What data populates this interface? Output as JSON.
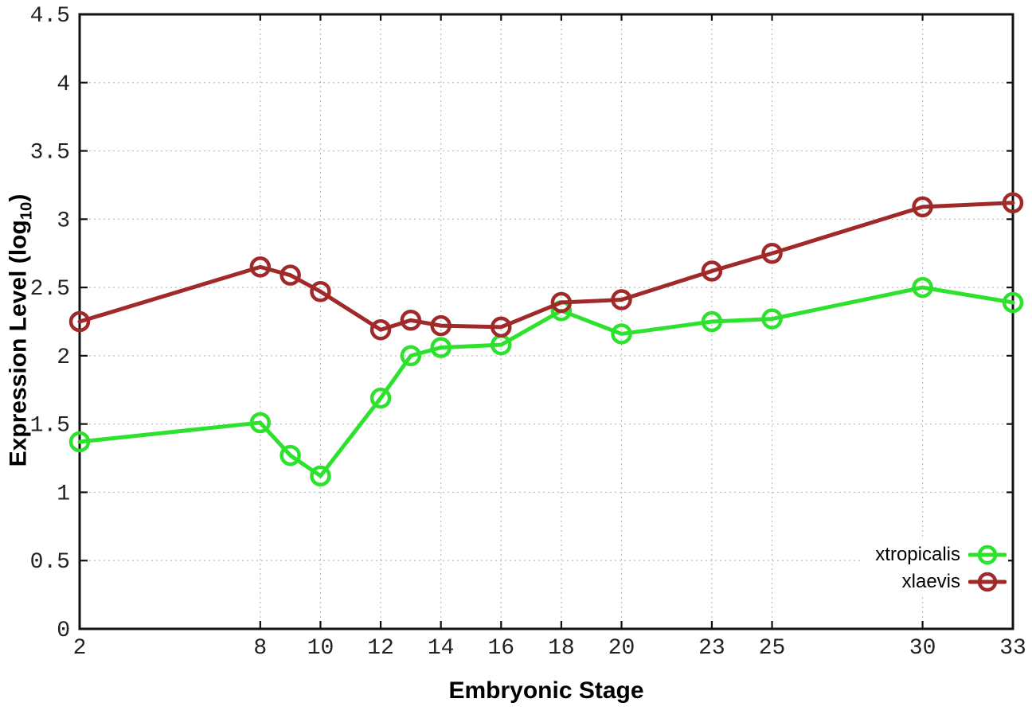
{
  "chart_data": {
    "type": "line",
    "x": [
      2,
      8,
      9,
      10,
      12,
      13,
      14,
      16,
      18,
      20,
      23,
      25,
      30,
      33
    ],
    "series": [
      {
        "name": "xtropicalis",
        "color": "#2ce22c",
        "values": [
          1.37,
          1.51,
          1.27,
          1.12,
          1.69,
          2.0,
          2.06,
          2.08,
          2.33,
          2.16,
          2.25,
          2.27,
          2.5,
          2.39
        ]
      },
      {
        "name": "xlaevis",
        "color": "#a02a2a",
        "values": [
          2.25,
          2.65,
          2.59,
          2.47,
          2.19,
          2.26,
          2.22,
          2.21,
          2.39,
          2.41,
          2.62,
          2.75,
          3.09,
          3.12
        ]
      }
    ],
    "xlabel": "Embryonic Stage",
    "ylabel": "Expression Level (log10)",
    "ylabel_parts": {
      "text": "Expression Level (log",
      "sub": "10",
      "suffix": ")"
    },
    "xticks": [
      2,
      8,
      10,
      12,
      14,
      16,
      18,
      20,
      23,
      25,
      30,
      33
    ],
    "yticks": [
      "0",
      "0.5",
      "1",
      "1.5",
      "2",
      "2.5",
      "3",
      "3.5",
      "4",
      "4.5"
    ],
    "xlim": [
      2,
      33
    ],
    "ylim": [
      0,
      4.5
    ],
    "grid": true,
    "legend_position": "bottom-right",
    "marker": "open-circle",
    "colors": {
      "axis": "#111111",
      "grid": "#bdbdbd",
      "background": "#ffffff"
    }
  }
}
